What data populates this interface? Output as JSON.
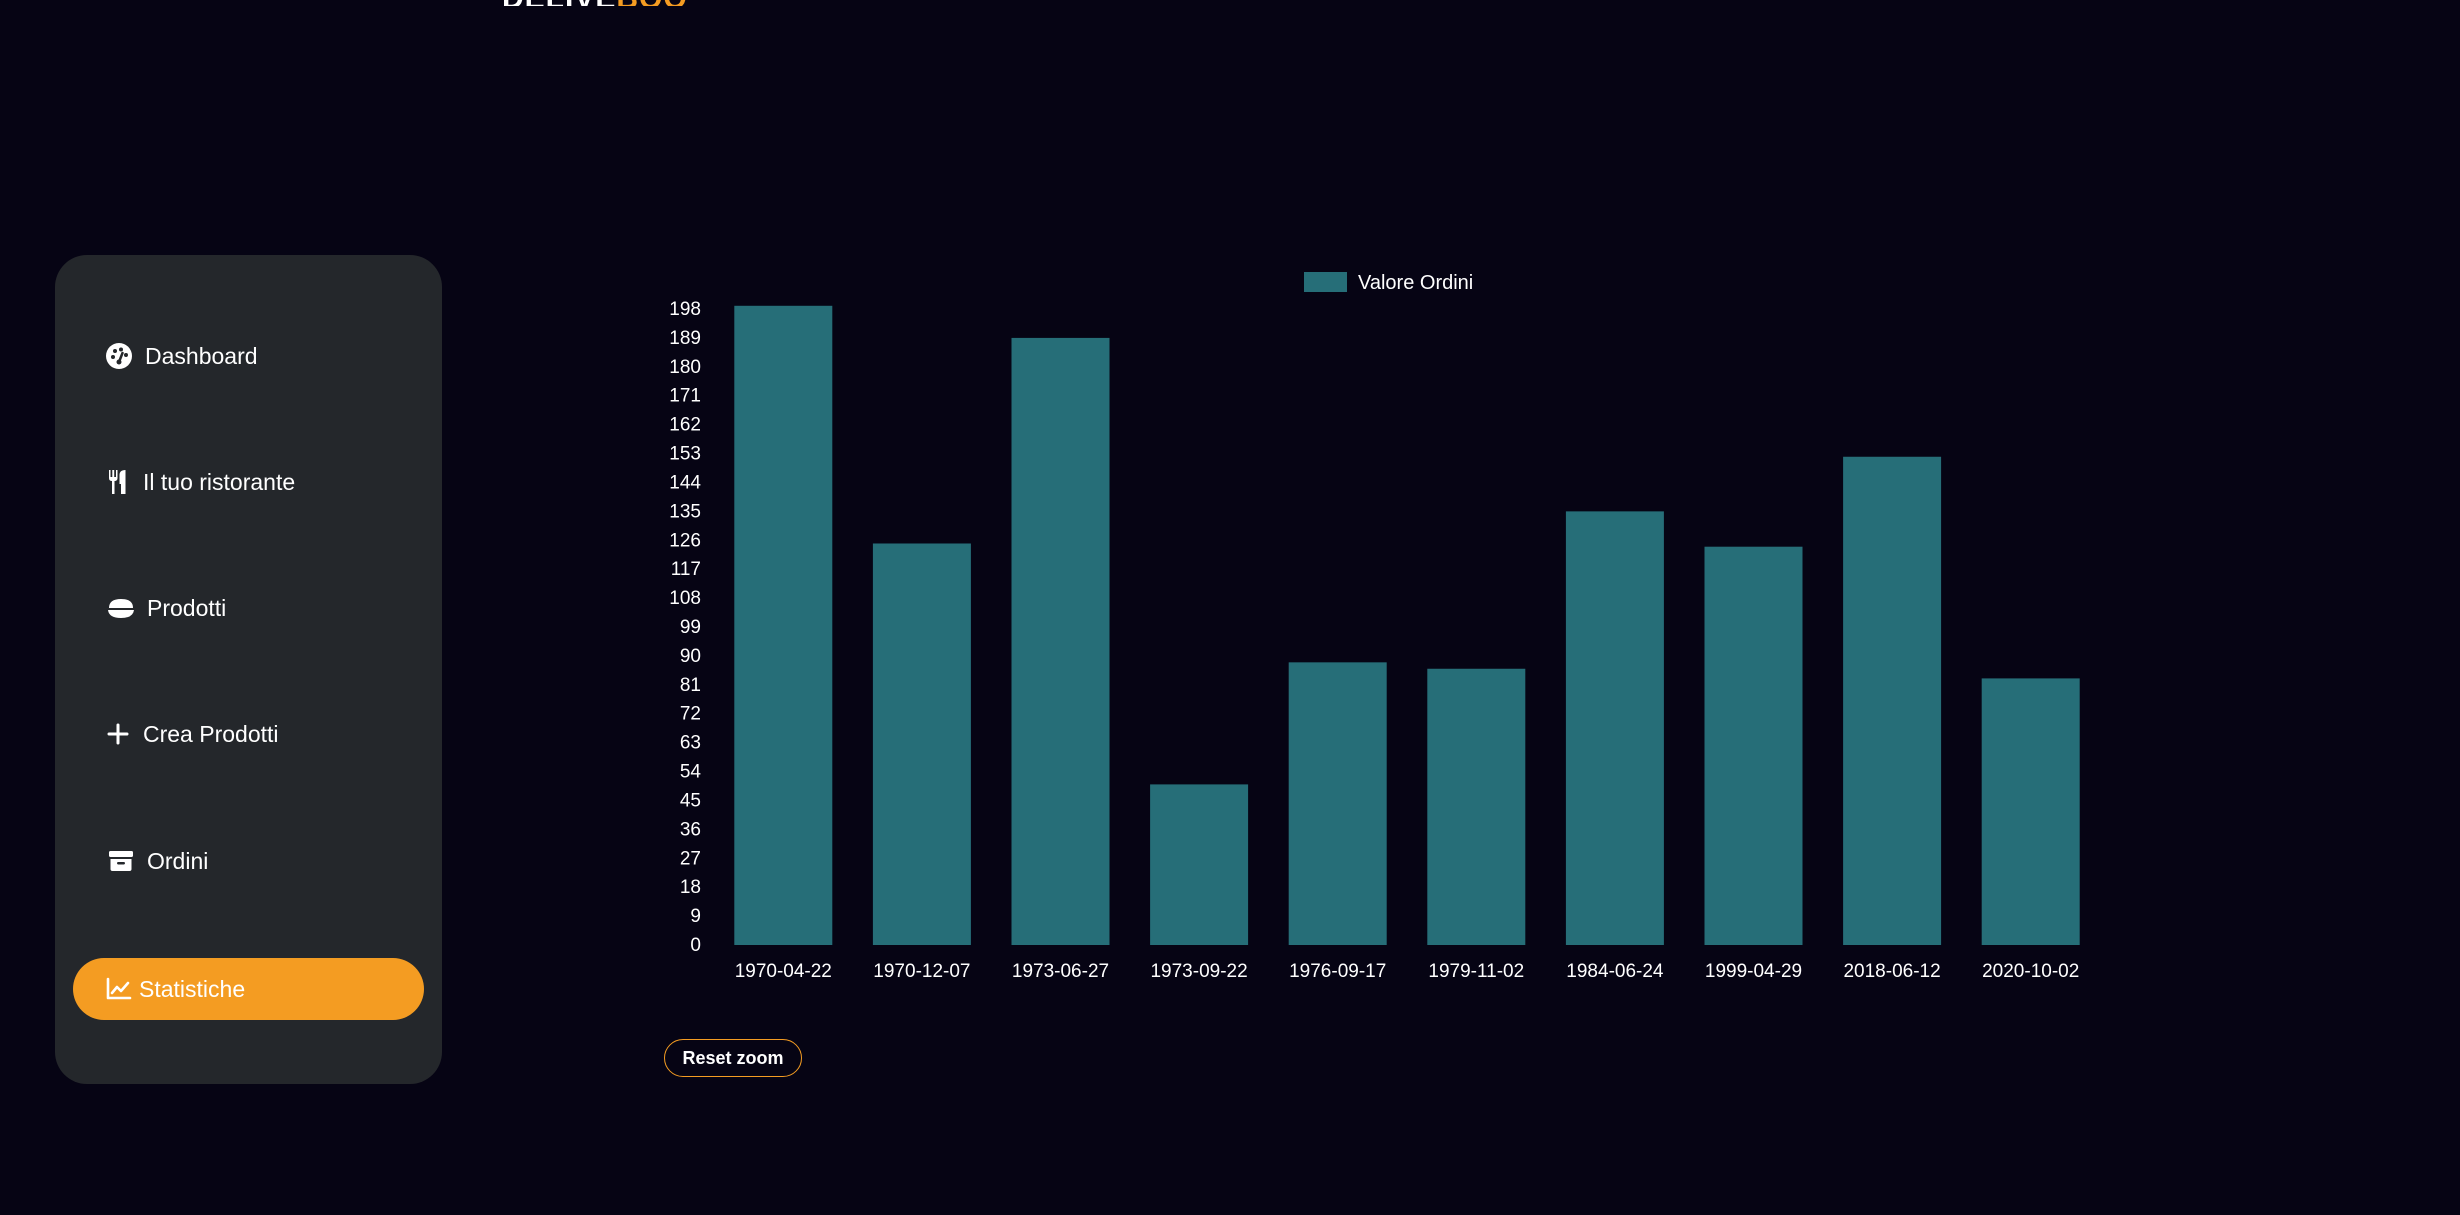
{
  "brand": {
    "part1": "DELIVE",
    "part2": "BOO",
    "accent": "#f49c22"
  },
  "sidebar": {
    "items": [
      {
        "label": "Dashboard",
        "icon": "gauge-icon"
      },
      {
        "label": "Il tuo ristorante",
        "icon": "utensils-icon"
      },
      {
        "label": "Prodotti",
        "icon": "bowl-icon"
      },
      {
        "label": "Crea Prodotti",
        "icon": "plus-icon"
      },
      {
        "label": "Ordini",
        "icon": "archive-icon"
      },
      {
        "label": "Statistiche",
        "icon": "chart-line-icon",
        "active": true
      }
    ]
  },
  "chart_data": {
    "type": "bar",
    "legend": [
      "Valore Ordini"
    ],
    "legend_position": "top-center",
    "categories": [
      "1970-04-22",
      "1970-12-07",
      "1973-06-27",
      "1973-09-22",
      "1976-09-17",
      "1979-11-02",
      "1984-06-24",
      "1999-04-29",
      "2018-06-12",
      "2020-10-02"
    ],
    "series": [
      {
        "name": "Valore Ordini",
        "values": [
          199,
          125,
          189,
          50,
          88,
          86,
          135,
          124,
          152,
          83
        ],
        "color": "#266e78"
      }
    ],
    "yticks": [
      0,
      9,
      18,
      27,
      36,
      45,
      54,
      63,
      72,
      81,
      90,
      99,
      108,
      117,
      126,
      135,
      144,
      153,
      162,
      171,
      180,
      189,
      198
    ],
    "ylim": [
      0,
      198
    ],
    "grid": false
  },
  "reset_zoom_label": "Reset zoom"
}
